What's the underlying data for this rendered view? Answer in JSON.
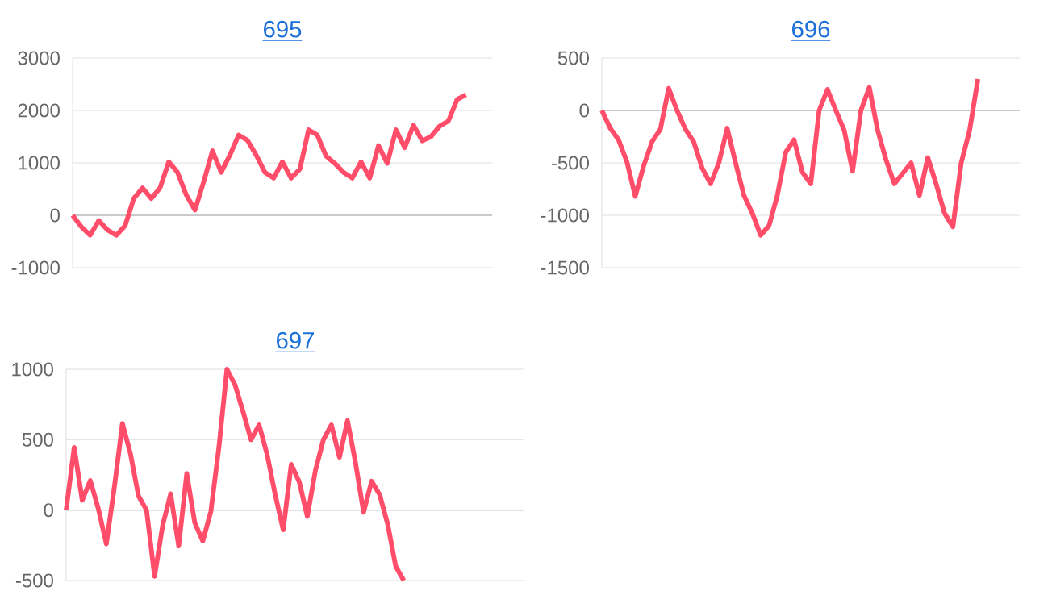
{
  "chart_data": [
    {
      "type": "line",
      "title": "695",
      "color": "#ff4d6a",
      "grid": "y",
      "tick_labels": "y",
      "ylim": [
        -1000,
        3000
      ],
      "yticks": [
        -1000,
        0,
        1000,
        2000,
        3000
      ],
      "categories": [
        null,
        null,
        null,
        null,
        null,
        null,
        null,
        null,
        null,
        null,
        null,
        null,
        null,
        null,
        null,
        null,
        null,
        null,
        null,
        null,
        null,
        null,
        null,
        null,
        null,
        null,
        null,
        null,
        null,
        null,
        null,
        null,
        null,
        null,
        null,
        null,
        null,
        null,
        null,
        null,
        null,
        null,
        null,
        null,
        null,
        null,
        null,
        null,
        null
      ],
      "values": [
        0,
        -220,
        -380,
        -100,
        -280,
        -380,
        -200,
        320,
        520,
        320,
        520,
        1020,
        820,
        390,
        100,
        640,
        1230,
        820,
        1150,
        1530,
        1430,
        1150,
        820,
        710,
        1020,
        710,
        880,
        1630,
        1530,
        1130,
        990,
        820,
        710,
        1020,
        710,
        1330,
        990,
        1630,
        1290,
        1720,
        1420,
        1500,
        1700,
        1800,
        2210,
        2300,
        null,
        null,
        null
      ]
    },
    {
      "type": "line",
      "title": "696",
      "color": "#ff4d6a",
      "grid": "y",
      "tick_labels": "y",
      "ylim": [
        -1500,
        500
      ],
      "yticks": [
        -1500,
        -1000,
        -500,
        0,
        500
      ],
      "categories": [
        null,
        null,
        null,
        null,
        null,
        null,
        null,
        null,
        null,
        null,
        null,
        null,
        null,
        null,
        null,
        null,
        null,
        null,
        null,
        null,
        null,
        null,
        null,
        null,
        null,
        null,
        null,
        null,
        null,
        null,
        null,
        null,
        null,
        null,
        null,
        null,
        null,
        null,
        null,
        null,
        null,
        null,
        null,
        null,
        null,
        null,
        null,
        null,
        null,
        null,
        null
      ],
      "values": [
        0,
        -170,
        -280,
        -490,
        -820,
        -530,
        -300,
        -180,
        210,
        0,
        -180,
        -300,
        -550,
        -700,
        -500,
        -170,
        -500,
        -810,
        -980,
        -1190,
        -1100,
        -810,
        -400,
        -280,
        -590,
        -700,
        0,
        200,
        0,
        -190,
        -580,
        0,
        220,
        -190,
        -470,
        -700,
        -600,
        -500,
        -810,
        -450,
        -700,
        -980,
        -1110,
        -500,
        -190,
        300,
        null,
        null,
        null,
        null,
        null
      ]
    },
    {
      "type": "line",
      "title": "697",
      "color": "#ff4d6a",
      "grid": "y",
      "tick_labels": "y",
      "ylim": [
        -500,
        1000
      ],
      "yticks": [
        -500,
        0,
        500,
        1000
      ],
      "categories": [
        null,
        null,
        null,
        null,
        null,
        null,
        null,
        null,
        null,
        null,
        null,
        null,
        null,
        null,
        null,
        null,
        null,
        null,
        null,
        null,
        null,
        null,
        null,
        null,
        null,
        null,
        null,
        null,
        null,
        null,
        null,
        null,
        null,
        null,
        null,
        null,
        null,
        null,
        null,
        null,
        null,
        null,
        null,
        null,
        null,
        null,
        null,
        null,
        null,
        null,
        null,
        null,
        null,
        null,
        null,
        null,
        null,
        null
      ],
      "values": [
        0,
        445,
        70,
        210,
        10,
        -240,
        165,
        615,
        400,
        100,
        0,
        -470,
        -110,
        115,
        -255,
        260,
        -90,
        -220,
        -10,
        445,
        1000,
        890,
        700,
        500,
        605,
        395,
        110,
        -140,
        325,
        200,
        -45,
        280,
        500,
        605,
        375,
        635,
        335,
        -15,
        205,
        110,
        -100,
        -400,
        -500,
        null,
        null,
        null,
        null,
        null,
        null,
        null,
        null,
        null,
        null,
        null,
        null,
        null,
        null,
        null
      ]
    }
  ]
}
